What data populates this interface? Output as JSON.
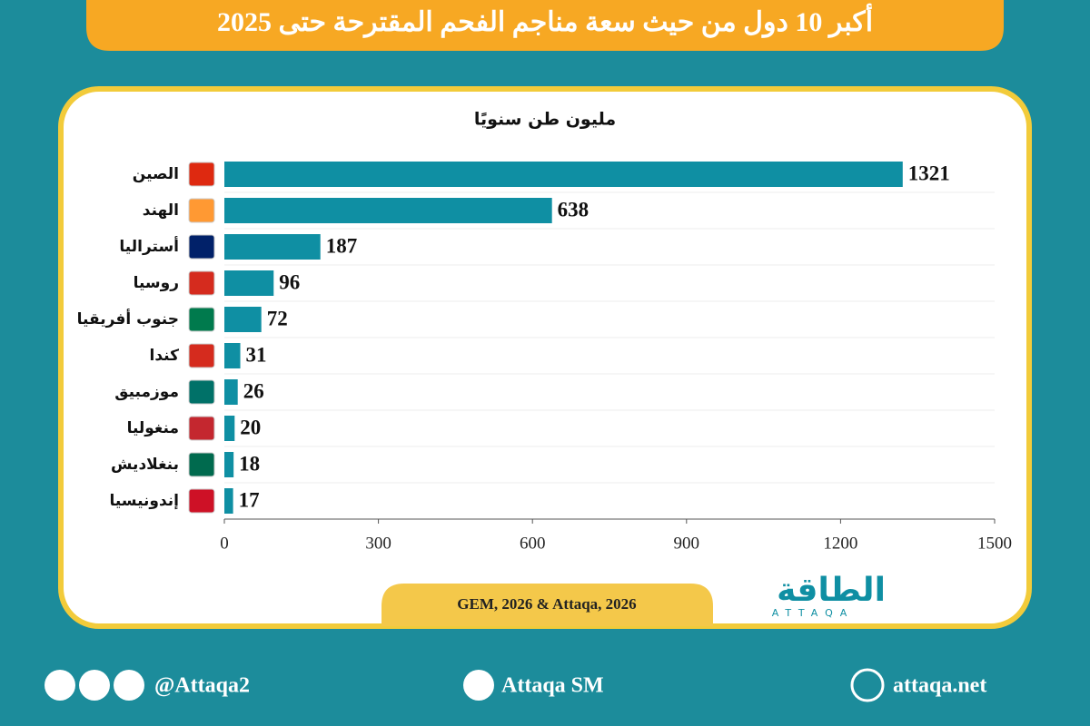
{
  "chart_data": {
    "type": "bar",
    "orientation": "horizontal",
    "title": "أكبر 10 دول من حيث سعة مناجم الفحم المقترحة حتى 2025",
    "subtitle": "مليون طن سنويًا",
    "categories": [
      "الصين",
      "الهند",
      "أستراليا",
      "روسيا",
      "جنوب أفريقيا",
      "كندا",
      "موزمبيق",
      "منغوليا",
      "بنغلاديش",
      "إندونيسيا"
    ],
    "values": [
      1321,
      638,
      187,
      96,
      72,
      31,
      26,
      20,
      18,
      17
    ],
    "color": "#0f8fa3",
    "xlim": [
      0,
      1500
    ],
    "xticks": [
      0,
      300,
      600,
      900,
      1200,
      1500
    ],
    "source": "GEM, 2026 & Attaqa, 2026",
    "logo": [
      "الطاقة",
      "ATTAQA"
    ],
    "footer": [
      "@Attaqa2",
      "Attaqa SM",
      "attaqa.net"
    ]
  }
}
